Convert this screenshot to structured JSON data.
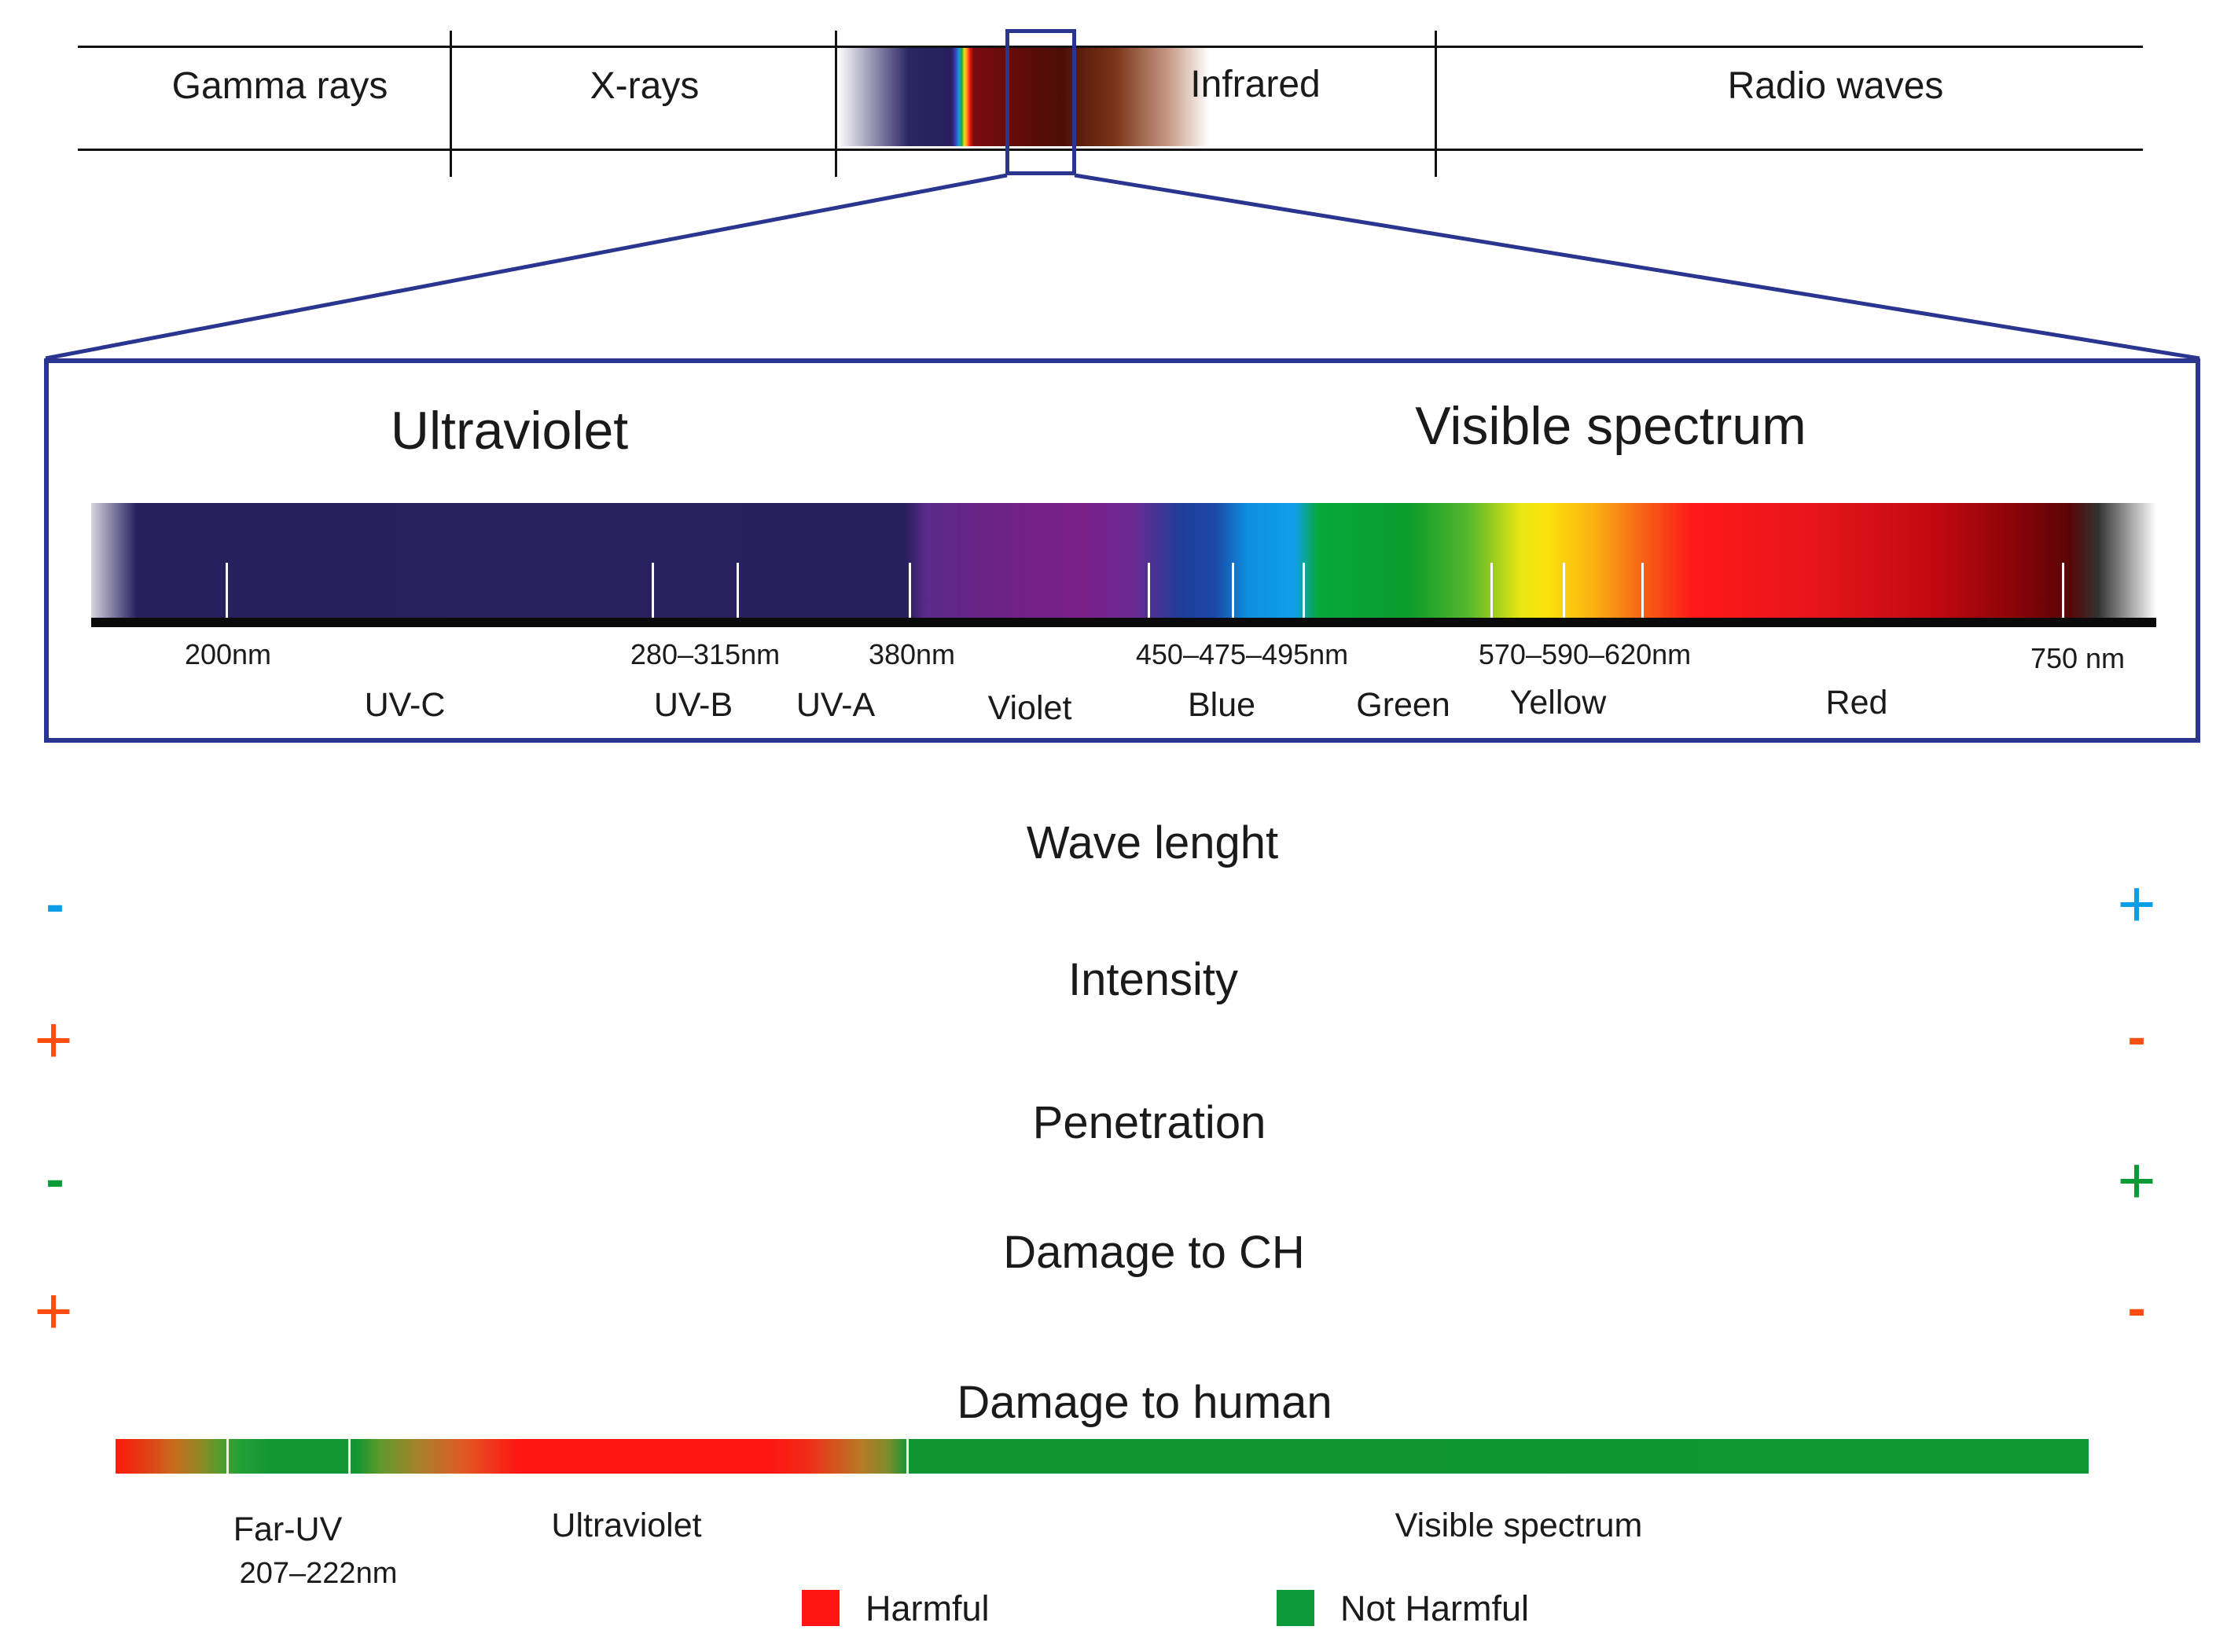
{
  "em_spectrum": {
    "bands": [
      "Gamma rays",
      "X-rays",
      "Infrared",
      "Radio waves"
    ]
  },
  "zoom": {
    "ultraviolet_heading": "Ultraviolet",
    "visible_heading": "Visible spectrum",
    "wavelength_labels": [
      "200nm",
      "280–315nm",
      "380nm",
      "450–475–495nm",
      "570–590–620nm",
      "750 nm"
    ],
    "regions": [
      "UV-C",
      "UV-B",
      "UV-A",
      "Violet",
      "Blue",
      "Green",
      "Yellow",
      "Red"
    ]
  },
  "properties": [
    {
      "title": "Wave lenght",
      "left_sign": "-",
      "right_sign": "+",
      "color": "#0a9ee4"
    },
    {
      "title": "Intensity",
      "left_sign": "+",
      "right_sign": "-",
      "color": "#ff4d10"
    },
    {
      "title": "Penetration",
      "left_sign": "-",
      "right_sign": "+",
      "color": "#0a9a36"
    },
    {
      "title": "Damage to CH",
      "left_sign": "+",
      "right_sign": "-",
      "color": "#ff4d10"
    }
  ],
  "human_damage": {
    "title": "Damage to human",
    "far_uv_label": "Far-UV",
    "far_uv_range": "207–222nm",
    "ultraviolet_label": "Ultraviolet",
    "visible_label": "Visible spectrum"
  },
  "legend": {
    "harmful": {
      "label": "Harmful",
      "color": "#ff1414"
    },
    "not_harmful": {
      "label": "Not Harmful",
      "color": "#0c9a38"
    }
  }
}
